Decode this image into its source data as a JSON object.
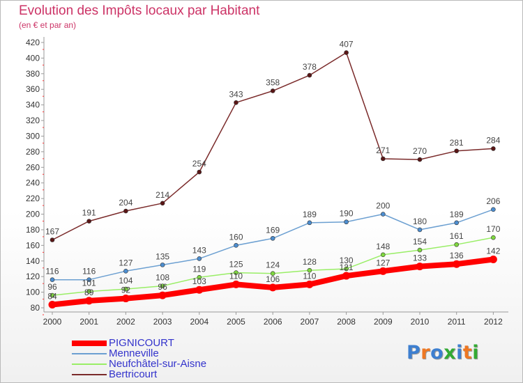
{
  "header": {
    "title": "Evolution des Impôts locaux par Habitant",
    "subtitle": "(en € et par an)"
  },
  "brand": {
    "text": "Proxiti",
    "letter_colors": [
      "#3d7fd0",
      "#ee7722",
      "#3d7fd0",
      "#33aa33",
      "#3d7fd0",
      "#ee7722",
      "#33aa33"
    ]
  },
  "chart_data": {
    "type": "line",
    "title": "Evolution des Impôts locaux par Habitant",
    "subtitle": "(en € et par an)",
    "x": [
      "2000",
      "2001",
      "2002",
      "2003",
      "2004",
      "2005",
      "2006",
      "2007",
      "2008",
      "2009",
      "2010",
      "2011",
      "2012"
    ],
    "ylim": [
      80,
      420
    ],
    "yticks": [
      80,
      100,
      120,
      140,
      160,
      180,
      200,
      220,
      240,
      260,
      280,
      300,
      320,
      340,
      360,
      380,
      400,
      420
    ],
    "grid": false,
    "legend_position": "bottom-left",
    "series": [
      {
        "name": "PIGNICOURT",
        "color": "#ff0000",
        "marker_color": "#ff0000",
        "emphasis": true,
        "values": [
          84,
          89,
          92,
          96,
          103,
          110,
          106,
          110,
          121,
          127,
          133,
          136,
          142
        ],
        "labels": [
          "84",
          "89",
          "92",
          "96",
          "103",
          "110",
          "106",
          "110",
          "121",
          "127",
          "133",
          "136",
          "142"
        ]
      },
      {
        "name": "Menneville",
        "color": "#6b9fd1",
        "marker_color": "#4d8ed0",
        "values": [
          116,
          116,
          127,
          135,
          143,
          160,
          169,
          189,
          190,
          200,
          180,
          189,
          206
        ],
        "labels": [
          "116",
          "116",
          "127",
          "135",
          "143",
          "160",
          "169",
          "189",
          "190",
          "200",
          "180",
          "189",
          "206"
        ]
      },
      {
        "name": "Neufchâtel-sur-Aisne",
        "color": "#99ee66",
        "marker_color": "#7fd83f",
        "values": [
          96,
          101,
          104,
          108,
          119,
          125,
          124,
          128,
          130,
          148,
          154,
          161,
          170
        ],
        "labels": [
          "96",
          "101",
          "104",
          "108",
          "119",
          "125",
          "124",
          "128",
          "130",
          "148",
          "154",
          "161",
          "170"
        ]
      },
      {
        "name": "Bertricourt",
        "color": "#7a2a2a",
        "marker_color": "#5a1616",
        "values": [
          167,
          191,
          204,
          214,
          254,
          343,
          358,
          378,
          407,
          271,
          270,
          281,
          284
        ],
        "labels": [
          "167",
          "191",
          "204",
          "214",
          "254",
          "343",
          "358",
          "378",
          "407",
          "271",
          "270",
          "281",
          "284"
        ]
      }
    ]
  }
}
